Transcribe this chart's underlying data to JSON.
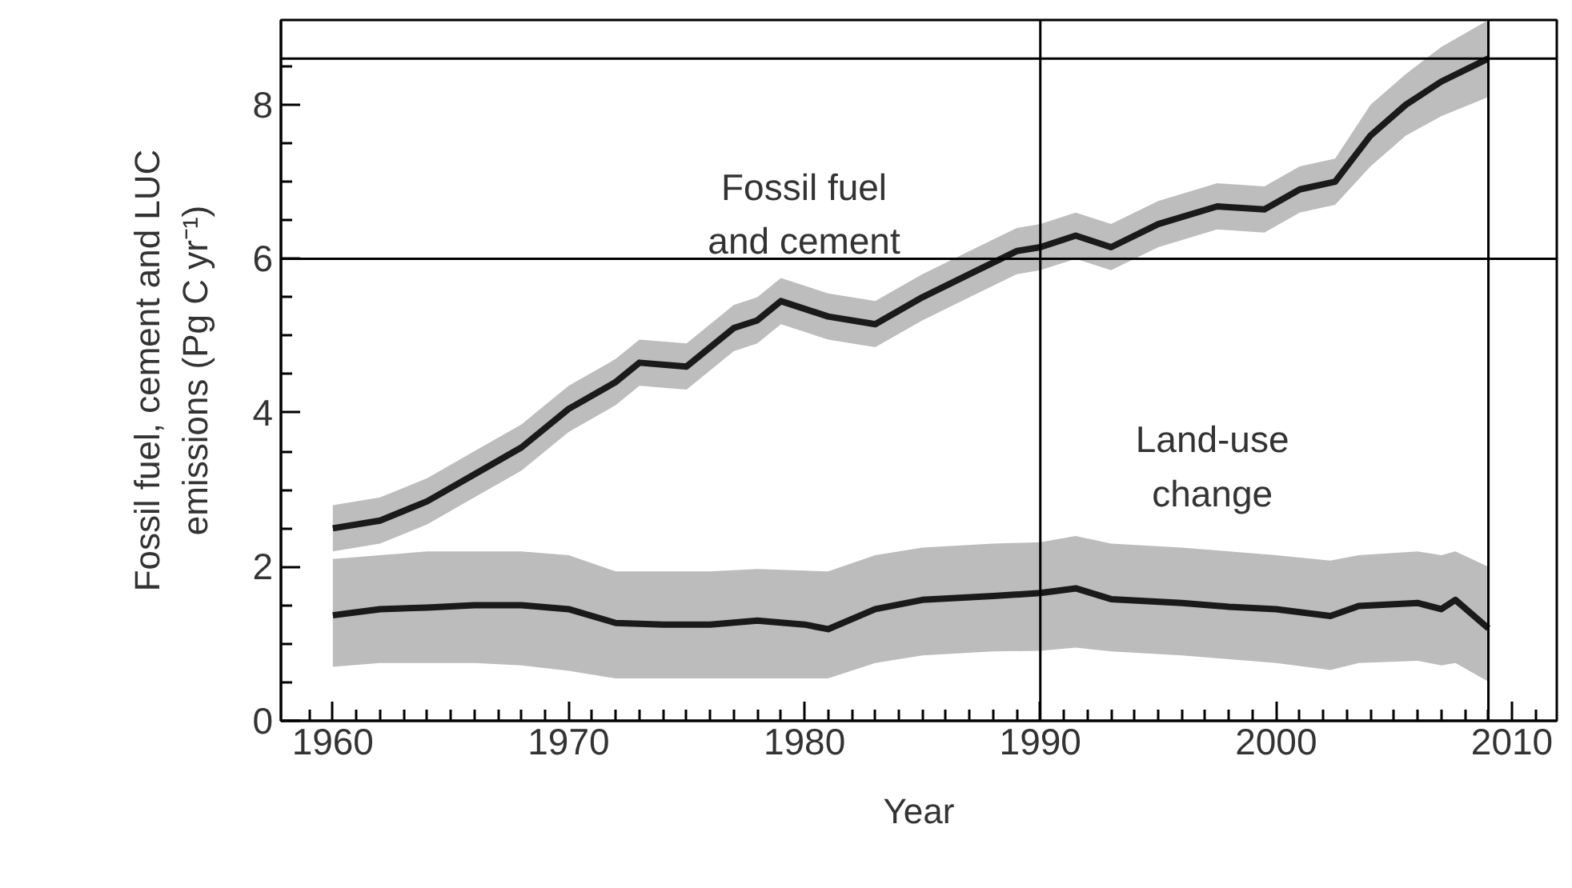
{
  "chart_data": {
    "type": "line",
    "xlabel": "Year",
    "ylabel": "Fossil fuel, cement and LUC\nemissions (Pg C yr⁻¹)",
    "xlim": [
      1957.8,
      2011.9
    ],
    "ylim": [
      0,
      9.1
    ],
    "xticks": [
      {
        "value": 1959,
        "label": null
      },
      1960,
      {
        "value": 1961,
        "label": null
      },
      {
        "value": 1962,
        "label": null
      },
      {
        "value": 1963,
        "label": null
      },
      {
        "value": 1964,
        "label": null
      },
      {
        "value": 1965,
        "label": null
      },
      {
        "value": 1966,
        "label": null
      },
      {
        "value": 1967,
        "label": null
      },
      {
        "value": 1968,
        "label": null
      },
      {
        "value": 1969,
        "label": null
      },
      1970,
      {
        "value": 1971,
        "label": null
      },
      {
        "value": 1972,
        "label": null
      },
      {
        "value": 1973,
        "label": null
      },
      {
        "value": 1974,
        "label": null
      },
      {
        "value": 1975,
        "label": null
      },
      {
        "value": 1976,
        "label": null
      },
      {
        "value": 1977,
        "label": null
      },
      {
        "value": 1978,
        "label": null
      },
      {
        "value": 1979,
        "label": null
      },
      1980,
      {
        "value": 1981,
        "label": null
      },
      {
        "value": 1982,
        "label": null
      },
      {
        "value": 1983,
        "label": null
      },
      {
        "value": 1984,
        "label": null
      },
      {
        "value": 1985,
        "label": null
      },
      {
        "value": 1986,
        "label": null
      },
      {
        "value": 1987,
        "label": null
      },
      {
        "value": 1988,
        "label": null
      },
      {
        "value": 1989,
        "label": null
      },
      1990,
      {
        "value": 1991,
        "label": null
      },
      {
        "value": 1992,
        "label": null
      },
      {
        "value": 1993,
        "label": null
      },
      {
        "value": 1994,
        "label": null
      },
      {
        "value": 1995,
        "label": null
      },
      {
        "value": 1996,
        "label": null
      },
      {
        "value": 1997,
        "label": null
      },
      {
        "value": 1998,
        "label": null
      },
      {
        "value": 1999,
        "label": null
      },
      2000,
      {
        "value": 2001,
        "label": null
      },
      {
        "value": 2002,
        "label": null
      },
      {
        "value": 2003,
        "label": null
      },
      {
        "value": 2004,
        "label": null
      },
      {
        "value": 2005,
        "label": null
      },
      {
        "value": 2006,
        "label": null
      },
      {
        "value": 2007,
        "label": null
      },
      {
        "value": 2008,
        "label": null
      },
      {
        "value": 2009,
        "label": null
      },
      2010,
      {
        "value": 2011,
        "label": null
      }
    ],
    "yticks": [
      0,
      {
        "value": 0.5,
        "label": null
      },
      {
        "value": 1,
        "label": null
      },
      {
        "value": 1.5,
        "label": null
      },
      2,
      {
        "value": 2.5,
        "label": null
      },
      {
        "value": 3,
        "label": null
      },
      {
        "value": 3.5,
        "label": null
      },
      4,
      {
        "value": 4.5,
        "label": null
      },
      {
        "value": 5,
        "label": null
      },
      {
        "value": 5.5,
        "label": null
      },
      6,
      {
        "value": 6.5,
        "label": null
      },
      {
        "value": 7,
        "label": null
      },
      {
        "value": 7.5,
        "label": null
      },
      8,
      {
        "value": 8.5,
        "label": null
      }
    ],
    "grid": false,
    "marker": "none",
    "line_style": "solid",
    "series": [
      {
        "name": "Fossil fuel\nand cement",
        "color": "#1a1a1a",
        "x": [
          1960,
          1962,
          1964,
          1966,
          1968,
          1970,
          1972,
          1973,
          1975,
          1977,
          1978,
          1979,
          1981,
          1983,
          1985,
          1987,
          1989,
          1990,
          1991.5,
          1993,
          1995,
          1997.5,
          1999.5,
          2001,
          2002.5,
          2004,
          2005.5,
          2007,
          2009
        ],
        "values": [
          2.5,
          2.6,
          2.85,
          3.2,
          3.55,
          4.05,
          4.4,
          4.65,
          4.6,
          5.1,
          5.2,
          5.45,
          5.25,
          5.15,
          5.5,
          5.8,
          6.1,
          6.15,
          6.3,
          6.15,
          6.45,
          6.68,
          6.64,
          6.9,
          7.0,
          7.6,
          8.0,
          8.3,
          8.6
        ],
        "lower": [
          2.2,
          2.3,
          2.55,
          2.9,
          3.25,
          3.75,
          4.1,
          4.35,
          4.3,
          4.8,
          4.9,
          5.15,
          4.95,
          4.85,
          5.2,
          5.5,
          5.8,
          5.85,
          6.0,
          5.85,
          6.15,
          6.38,
          6.34,
          6.6,
          6.7,
          7.2,
          7.6,
          7.85,
          8.1
        ],
        "upper": [
          2.8,
          2.9,
          3.15,
          3.5,
          3.85,
          4.35,
          4.7,
          4.95,
          4.9,
          5.4,
          5.5,
          5.75,
          5.55,
          5.45,
          5.8,
          6.1,
          6.4,
          6.45,
          6.6,
          6.45,
          6.75,
          6.98,
          6.94,
          7.2,
          7.3,
          8.0,
          8.4,
          8.75,
          9.1
        ]
      },
      {
        "name": "Land-use\nchange",
        "color": "#1a1a1a",
        "x": [
          1960,
          1962,
          1964,
          1966,
          1968,
          1970,
          1972,
          1974,
          1976,
          1978,
          1980,
          1981,
          1983,
          1985,
          1988,
          1990,
          1991.5,
          1993,
          1996,
          1998,
          2000,
          2002.3,
          2003.5,
          2006,
          2007,
          2007.6,
          2009
        ],
        "values": [
          1.37,
          1.45,
          1.47,
          1.5,
          1.5,
          1.45,
          1.27,
          1.25,
          1.25,
          1.3,
          1.25,
          1.19,
          1.45,
          1.57,
          1.62,
          1.66,
          1.72,
          1.58,
          1.53,
          1.48,
          1.45,
          1.36,
          1.49,
          1.53,
          1.45,
          1.57,
          1.2
        ],
        "lower": [
          0.7,
          0.75,
          0.75,
          0.75,
          0.72,
          0.65,
          0.55,
          0.55,
          0.55,
          0.55,
          0.55,
          0.55,
          0.75,
          0.85,
          0.9,
          0.91,
          0.95,
          0.9,
          0.85,
          0.8,
          0.75,
          0.66,
          0.75,
          0.78,
          0.72,
          0.75,
          0.51
        ],
        "upper": [
          2.1,
          2.15,
          2.2,
          2.2,
          2.2,
          2.15,
          1.94,
          1.94,
          1.94,
          1.97,
          1.95,
          1.94,
          2.15,
          2.25,
          2.3,
          2.32,
          2.4,
          2.3,
          2.25,
          2.2,
          2.15,
          2.08,
          2.15,
          2.2,
          2.15,
          2.2,
          2.0
        ]
      }
    ],
    "ref_lines": [
      {
        "axis": "y",
        "value": 6,
        "color": "#000000"
      },
      {
        "axis": "y",
        "value": 8.6,
        "color": "#000000"
      },
      {
        "axis": "x",
        "value": 1990,
        "color": "#000000"
      },
      {
        "axis": "x",
        "value": 2009,
        "color": "#000000"
      }
    ]
  }
}
